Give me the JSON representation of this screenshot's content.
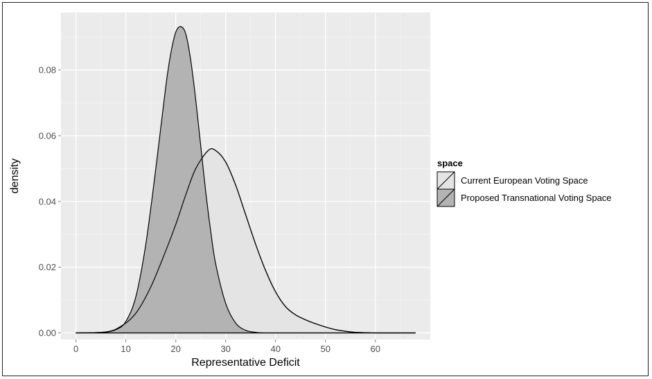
{
  "chart_data": {
    "type": "area",
    "title": "",
    "xlabel": "Representative Deficit",
    "ylabel": "density",
    "xlim": [
      -3,
      71
    ],
    "ylim": [
      -0.002,
      0.0975
    ],
    "x_ticks": [
      0,
      10,
      20,
      30,
      40,
      50,
      60
    ],
    "x_tick_labels": [
      "0",
      "10",
      "20",
      "30",
      "40",
      "50",
      "60"
    ],
    "y_ticks": [
      0.0,
      0.02,
      0.04,
      0.06,
      0.08
    ],
    "y_tick_labels": [
      "0.00",
      "0.02",
      "0.04",
      "0.06",
      "0.08"
    ],
    "grid": true,
    "legend": {
      "title": "space",
      "position": "right"
    },
    "series": [
      {
        "name": "Current European Voting Space",
        "color": "#e4e4e4",
        "x": [
          0,
          6,
          9,
          12,
          15,
          18,
          20,
          22,
          24,
          26.5,
          28,
          30,
          32,
          34,
          36,
          38,
          40,
          42,
          44,
          46,
          48,
          50,
          52,
          54,
          56,
          58,
          60,
          64,
          68
        ],
        "y": [
          0,
          0.0003,
          0.002,
          0.006,
          0.014,
          0.025,
          0.033,
          0.042,
          0.05,
          0.0555,
          0.0555,
          0.052,
          0.045,
          0.036,
          0.027,
          0.019,
          0.0125,
          0.008,
          0.0055,
          0.004,
          0.0028,
          0.0018,
          0.001,
          0.0005,
          0.0002,
          0.0001,
          0,
          0,
          0
        ]
      },
      {
        "name": "Proposed Transnational Voting Space",
        "color": "#b3b3b3",
        "x": [
          0,
          5,
          8,
          10,
          12,
          14,
          16,
          18,
          19,
          20,
          21,
          22,
          23,
          24,
          25,
          26,
          27,
          28,
          30,
          32,
          34,
          36,
          38,
          42,
          46,
          68
        ],
        "y": [
          0,
          0.0001,
          0.001,
          0.0035,
          0.011,
          0.027,
          0.05,
          0.075,
          0.085,
          0.0915,
          0.0932,
          0.091,
          0.083,
          0.071,
          0.057,
          0.043,
          0.031,
          0.021,
          0.009,
          0.003,
          0.0008,
          0.0002,
          0,
          0,
          0,
          0
        ]
      }
    ]
  }
}
